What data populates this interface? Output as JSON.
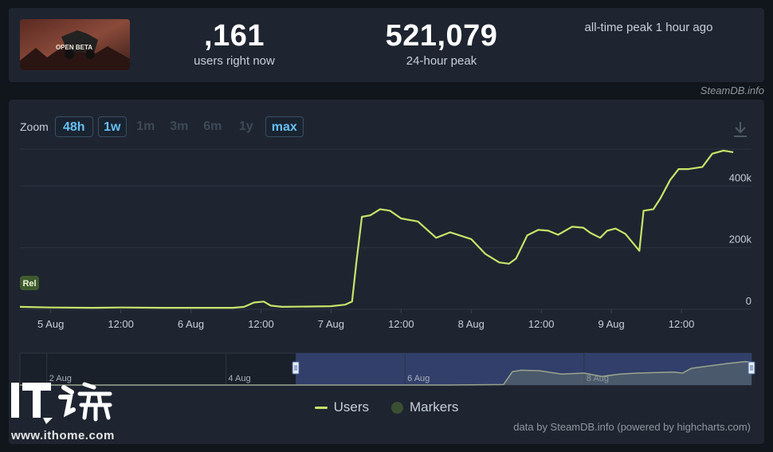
{
  "stats": {
    "current": {
      "value": ",161",
      "label": "users right now"
    },
    "peak24": {
      "value": "521,079",
      "label": "24-hour peak"
    },
    "alltime": {
      "value": "",
      "label": "all-time peak 1 hour ago"
    }
  },
  "game_thumb_text": "OPEN BETA",
  "credit_top": "SteamDB.info",
  "zoom": {
    "label": "Zoom",
    "buttons": [
      {
        "label": "48h",
        "active": true
      },
      {
        "label": "1w",
        "active": true
      },
      {
        "label": "1m",
        "active": false
      },
      {
        "label": "3m",
        "active": false
      },
      {
        "label": "6m",
        "active": false
      },
      {
        "label": "1y",
        "active": false
      },
      {
        "label": "max",
        "active": true
      }
    ]
  },
  "legend": {
    "users": "Users",
    "markers": "Markers"
  },
  "credit_bottom": "data by SteamDB.info (powered by highcharts.com)",
  "watermark": {
    "logo": "IT之家",
    "site": "www.ithome.com"
  },
  "marker_label": "Rel",
  "colors": {
    "line": "#c6e56a",
    "accent": "#66c0f4",
    "panel": "#1e2530",
    "bg": "#11151c"
  },
  "chart_data": {
    "type": "line",
    "title": "",
    "xlabel": "",
    "ylabel": "",
    "ylim": [
      0,
      520000
    ],
    "grid": true,
    "y_ticks": [
      "0",
      "200k",
      "400k"
    ],
    "y_tick_values": [
      0,
      200000,
      400000
    ],
    "x_ticks": [
      "5 Aug",
      "12:00",
      "6 Aug",
      "12:00",
      "7 Aug",
      "12:00",
      "8 Aug",
      "12:00",
      "9 Aug",
      "12:00"
    ],
    "x_tick_values": [
      1.0,
      1.5,
      2.0,
      2.5,
      3.0,
      3.5,
      4.0,
      4.5,
      5.0,
      5.5
    ],
    "xlim": [
      0.78,
      6.0
    ],
    "series": [
      {
        "name": "Users",
        "points": [
          [
            0.78,
            8000
          ],
          [
            1.0,
            6000
          ],
          [
            1.3,
            5000
          ],
          [
            1.5,
            6000
          ],
          [
            1.8,
            5000
          ],
          [
            2.0,
            5000
          ],
          [
            2.3,
            5000
          ],
          [
            2.38,
            8000
          ],
          [
            2.45,
            22000
          ],
          [
            2.52,
            25000
          ],
          [
            2.57,
            12000
          ],
          [
            2.65,
            8000
          ],
          [
            2.85,
            9000
          ],
          [
            3.0,
            10000
          ],
          [
            3.1,
            15000
          ],
          [
            3.15,
            25000
          ],
          [
            3.18,
            150000
          ],
          [
            3.22,
            300000
          ],
          [
            3.28,
            305000
          ],
          [
            3.35,
            325000
          ],
          [
            3.42,
            320000
          ],
          [
            3.5,
            295000
          ],
          [
            3.62,
            285000
          ],
          [
            3.75,
            232000
          ],
          [
            3.85,
            250000
          ],
          [
            4.0,
            228000
          ],
          [
            4.1,
            180000
          ],
          [
            4.2,
            152000
          ],
          [
            4.27,
            148000
          ],
          [
            4.32,
            165000
          ],
          [
            4.4,
            240000
          ],
          [
            4.48,
            258000
          ],
          [
            4.55,
            255000
          ],
          [
            4.62,
            242000
          ],
          [
            4.72,
            268000
          ],
          [
            4.8,
            265000
          ],
          [
            4.85,
            248000
          ],
          [
            4.92,
            232000
          ],
          [
            4.97,
            255000
          ],
          [
            5.03,
            262000
          ],
          [
            5.1,
            245000
          ],
          [
            5.2,
            190000
          ],
          [
            5.23,
            320000
          ],
          [
            5.3,
            325000
          ],
          [
            5.35,
            360000
          ],
          [
            5.42,
            420000
          ],
          [
            5.48,
            455000
          ],
          [
            5.55,
            455000
          ],
          [
            5.65,
            462000
          ],
          [
            5.72,
            505000
          ],
          [
            5.8,
            515000
          ],
          [
            5.87,
            510000
          ]
        ]
      }
    ],
    "markers": [
      {
        "x": 0.78,
        "label": "Rel"
      }
    ],
    "navigator": {
      "x_ticks": [
        "2 Aug",
        "4 Aug",
        "6 Aug",
        "8 Aug"
      ],
      "x_tick_values": [
        -2.0,
        0.0,
        2.0,
        4.0
      ],
      "xlim": [
        -2.3,
        5.87
      ],
      "selected": [
        0.78,
        5.87
      ],
      "points": [
        [
          -2.3,
          0
        ],
        [
          2.5,
          0
        ],
        [
          3.1,
          5000
        ],
        [
          3.2,
          140000
        ],
        [
          3.3,
          155000
        ],
        [
          3.5,
          150000
        ],
        [
          3.75,
          115000
        ],
        [
          4.0,
          125000
        ],
        [
          4.2,
          90000
        ],
        [
          4.4,
          115000
        ],
        [
          4.6,
          125000
        ],
        [
          4.8,
          130000
        ],
        [
          5.0,
          135000
        ],
        [
          5.1,
          125000
        ],
        [
          5.2,
          175000
        ],
        [
          5.4,
          200000
        ],
        [
          5.6,
          225000
        ],
        [
          5.8,
          245000
        ],
        [
          5.87,
          240000
        ]
      ],
      "ylim": [
        0,
        300000
      ]
    }
  }
}
